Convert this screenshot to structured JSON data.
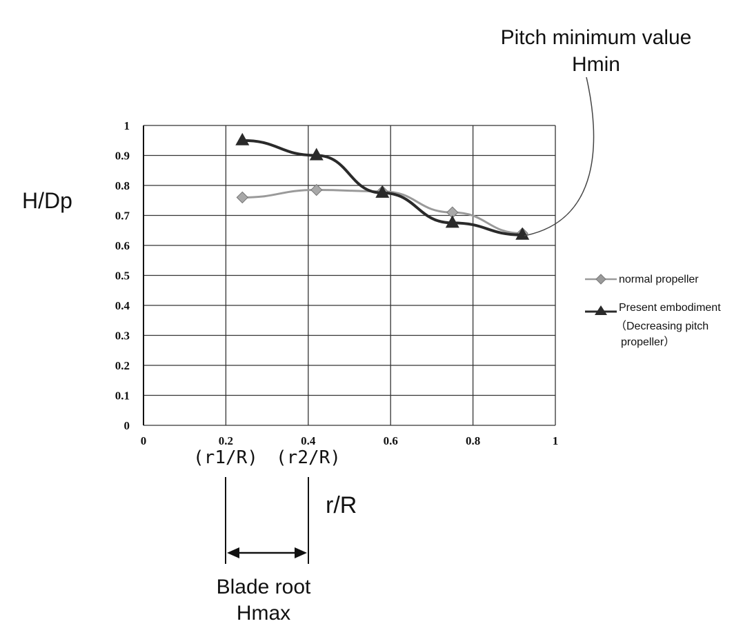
{
  "chart_data": {
    "type": "line",
    "xlabel": "r/R",
    "ylabel": "H/Dp",
    "xlim": [
      0,
      1
    ],
    "ylim": [
      0,
      1
    ],
    "x_ticks": [
      "0",
      "0.2",
      "0.4",
      "0.6",
      "0.8",
      "1"
    ],
    "y_ticks": [
      "0",
      "0.1",
      "0.2",
      "0.3",
      "0.4",
      "0.5",
      "0.6",
      "0.7",
      "0.8",
      "0.9",
      "1"
    ],
    "grid": true,
    "legend_position": "right",
    "series": [
      {
        "name": "normal propeller",
        "marker": "diamond",
        "color": "#9a9a9a",
        "x": [
          0.24,
          0.42,
          0.58,
          0.75,
          0.92
        ],
        "y": [
          0.76,
          0.785,
          0.78,
          0.71,
          0.64
        ]
      },
      {
        "name": "Present embodiment",
        "name_sub": [
          "（Decreasing pitch",
          "propeller）"
        ],
        "marker": "triangle",
        "color": "#2a2a2a",
        "x": [
          0.24,
          0.42,
          0.58,
          0.75,
          0.92
        ],
        "y": [
          0.95,
          0.9,
          0.775,
          0.675,
          0.635
        ]
      }
    ],
    "annotations": {
      "pitch_min_line1": "Pitch minimum  value",
      "pitch_min_line2": "Hmin",
      "r1_label": "(r1/R)",
      "r2_label": "(r2/R)",
      "blade_root_line1": "Blade root",
      "blade_root_line2": "Hmax"
    }
  }
}
